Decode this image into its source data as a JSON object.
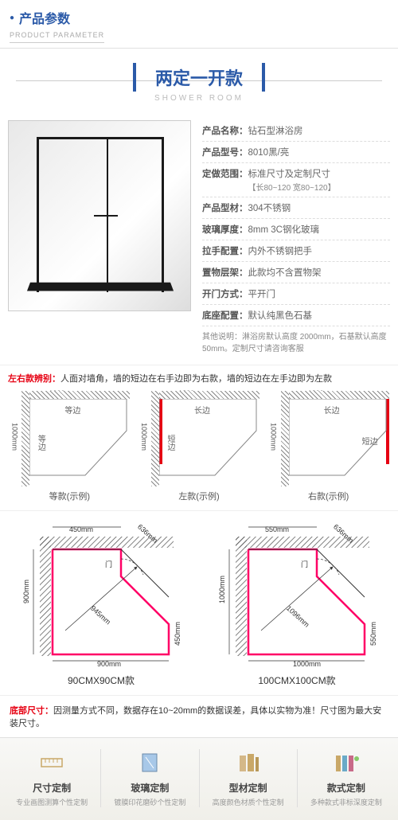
{
  "header": {
    "title": "产品参数",
    "subtitle": "PRODUCT PARAMETER"
  },
  "style": {
    "title": "两定一开款",
    "subtitle": "SHOWER ROOM"
  },
  "specs": [
    {
      "label": "产品名称：",
      "value": "钻石型淋浴房"
    },
    {
      "label": "产品型号：",
      "value": "8010黑/亮"
    },
    {
      "label": "定做范围：",
      "value": "标准尺寸及定制尺寸",
      "sub": "【长80~120 宽80~120】"
    },
    {
      "label": "产品型材：",
      "value": "304不锈钢"
    },
    {
      "label": "玻璃厚度：",
      "value": "8mm 3C钢化玻璃"
    },
    {
      "label": "拉手配置：",
      "value": "内外不锈钢把手"
    },
    {
      "label": "置物层架：",
      "value": "此款均不含置物架"
    },
    {
      "label": "开门方式：",
      "value": "平开门"
    },
    {
      "label": "底座配置：",
      "value": "默认纯黑色石基"
    }
  ],
  "spec_note": "其他说明：淋浴房默认高度 2000mm，石基默认高度50mm。定制尺寸请咨询客服",
  "distinguish": {
    "label": "左右款辨别：",
    "text": "人面对墙角，墙的短边在右手边即为右款，墙的短边在左手边即为左款"
  },
  "diag3": [
    {
      "top_dim": "1000mm",
      "left_dim": "1000mm",
      "t1": "等边",
      "t2": "等边",
      "caption": "等款(示例)",
      "red_side": "none"
    },
    {
      "top_dim": "1200mm",
      "left_dim": "1000mm",
      "t1": "长边",
      "t2": "短边",
      "caption": "左款(示例)",
      "red_side": "left"
    },
    {
      "top_dim": "1200mm",
      "left_dim": "1000mm",
      "t1": "长边",
      "t2": "短边",
      "caption": "右款(示例)",
      "red_side": "right"
    }
  ],
  "diag2": [
    {
      "w_top": "450mm",
      "diag_top": "636mm",
      "h_left": "900mm",
      "h_left2": "450mm",
      "diag_in": "945mm",
      "w_bot": "900mm",
      "door": "门",
      "caption": "90CMX90CM款"
    },
    {
      "w_top": "550mm",
      "diag_top": "636mm",
      "h_left": "1000mm",
      "h_left2": "550mm",
      "diag_in": "1096mm",
      "w_bot": "1000mm",
      "door": "门",
      "caption": "100CMX100CM款"
    }
  ],
  "bottom": {
    "label": "底部尺寸：",
    "text": "因测量方式不同，数据存在10~20mm的数据误差，具体以实物为准！尺寸图为最大安装尺寸。"
  },
  "features": [
    {
      "title": "尺寸定制",
      "sub": "专业画图测算个性定制",
      "icon": "ruler"
    },
    {
      "title": "玻璃定制",
      "sub": "镀膜印花磨砂个性定制",
      "icon": "glass"
    },
    {
      "title": "型材定制",
      "sub": "高度颜色材质个性定制",
      "icon": "profile"
    },
    {
      "title": "款式定制",
      "sub": "多种款式非标深度定制",
      "icon": "style"
    }
  ],
  "colors": {
    "brand": "#2b5aa8",
    "accent": "#e60012",
    "pink": "#ff0066"
  }
}
